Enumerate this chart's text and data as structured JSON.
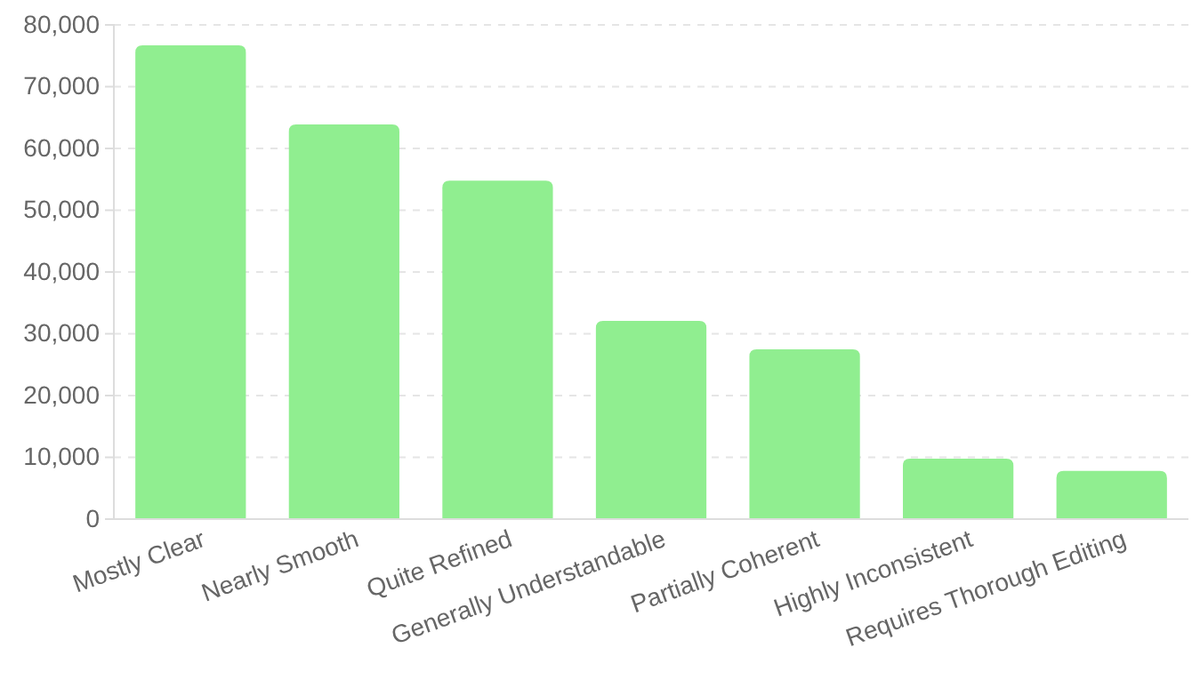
{
  "chart_data": {
    "type": "bar",
    "categories": [
      "Mostly Clear",
      "Nearly Smooth",
      "Quite Refined",
      "Generally Understandable",
      "Partially Coherent",
      "Highly Inconsistent",
      "Requires Thorough Editing"
    ],
    "values": [
      76700,
      63900,
      54800,
      32100,
      27500,
      9800,
      7800
    ],
    "color": "#90ee90",
    "ylim": [
      0,
      80000
    ],
    "yticks": [
      {
        "value": 0,
        "label": "0"
      },
      {
        "value": 10000,
        "label": "10,000"
      },
      {
        "value": 20000,
        "label": "20,000"
      },
      {
        "value": 30000,
        "label": "30,000"
      },
      {
        "value": 40000,
        "label": "40,000"
      },
      {
        "value": 50000,
        "label": "50,000"
      },
      {
        "value": 60000,
        "label": "60,000"
      },
      {
        "value": 70000,
        "label": "70,000"
      },
      {
        "value": 80000,
        "label": "80,000"
      }
    ],
    "grid": "y"
  }
}
